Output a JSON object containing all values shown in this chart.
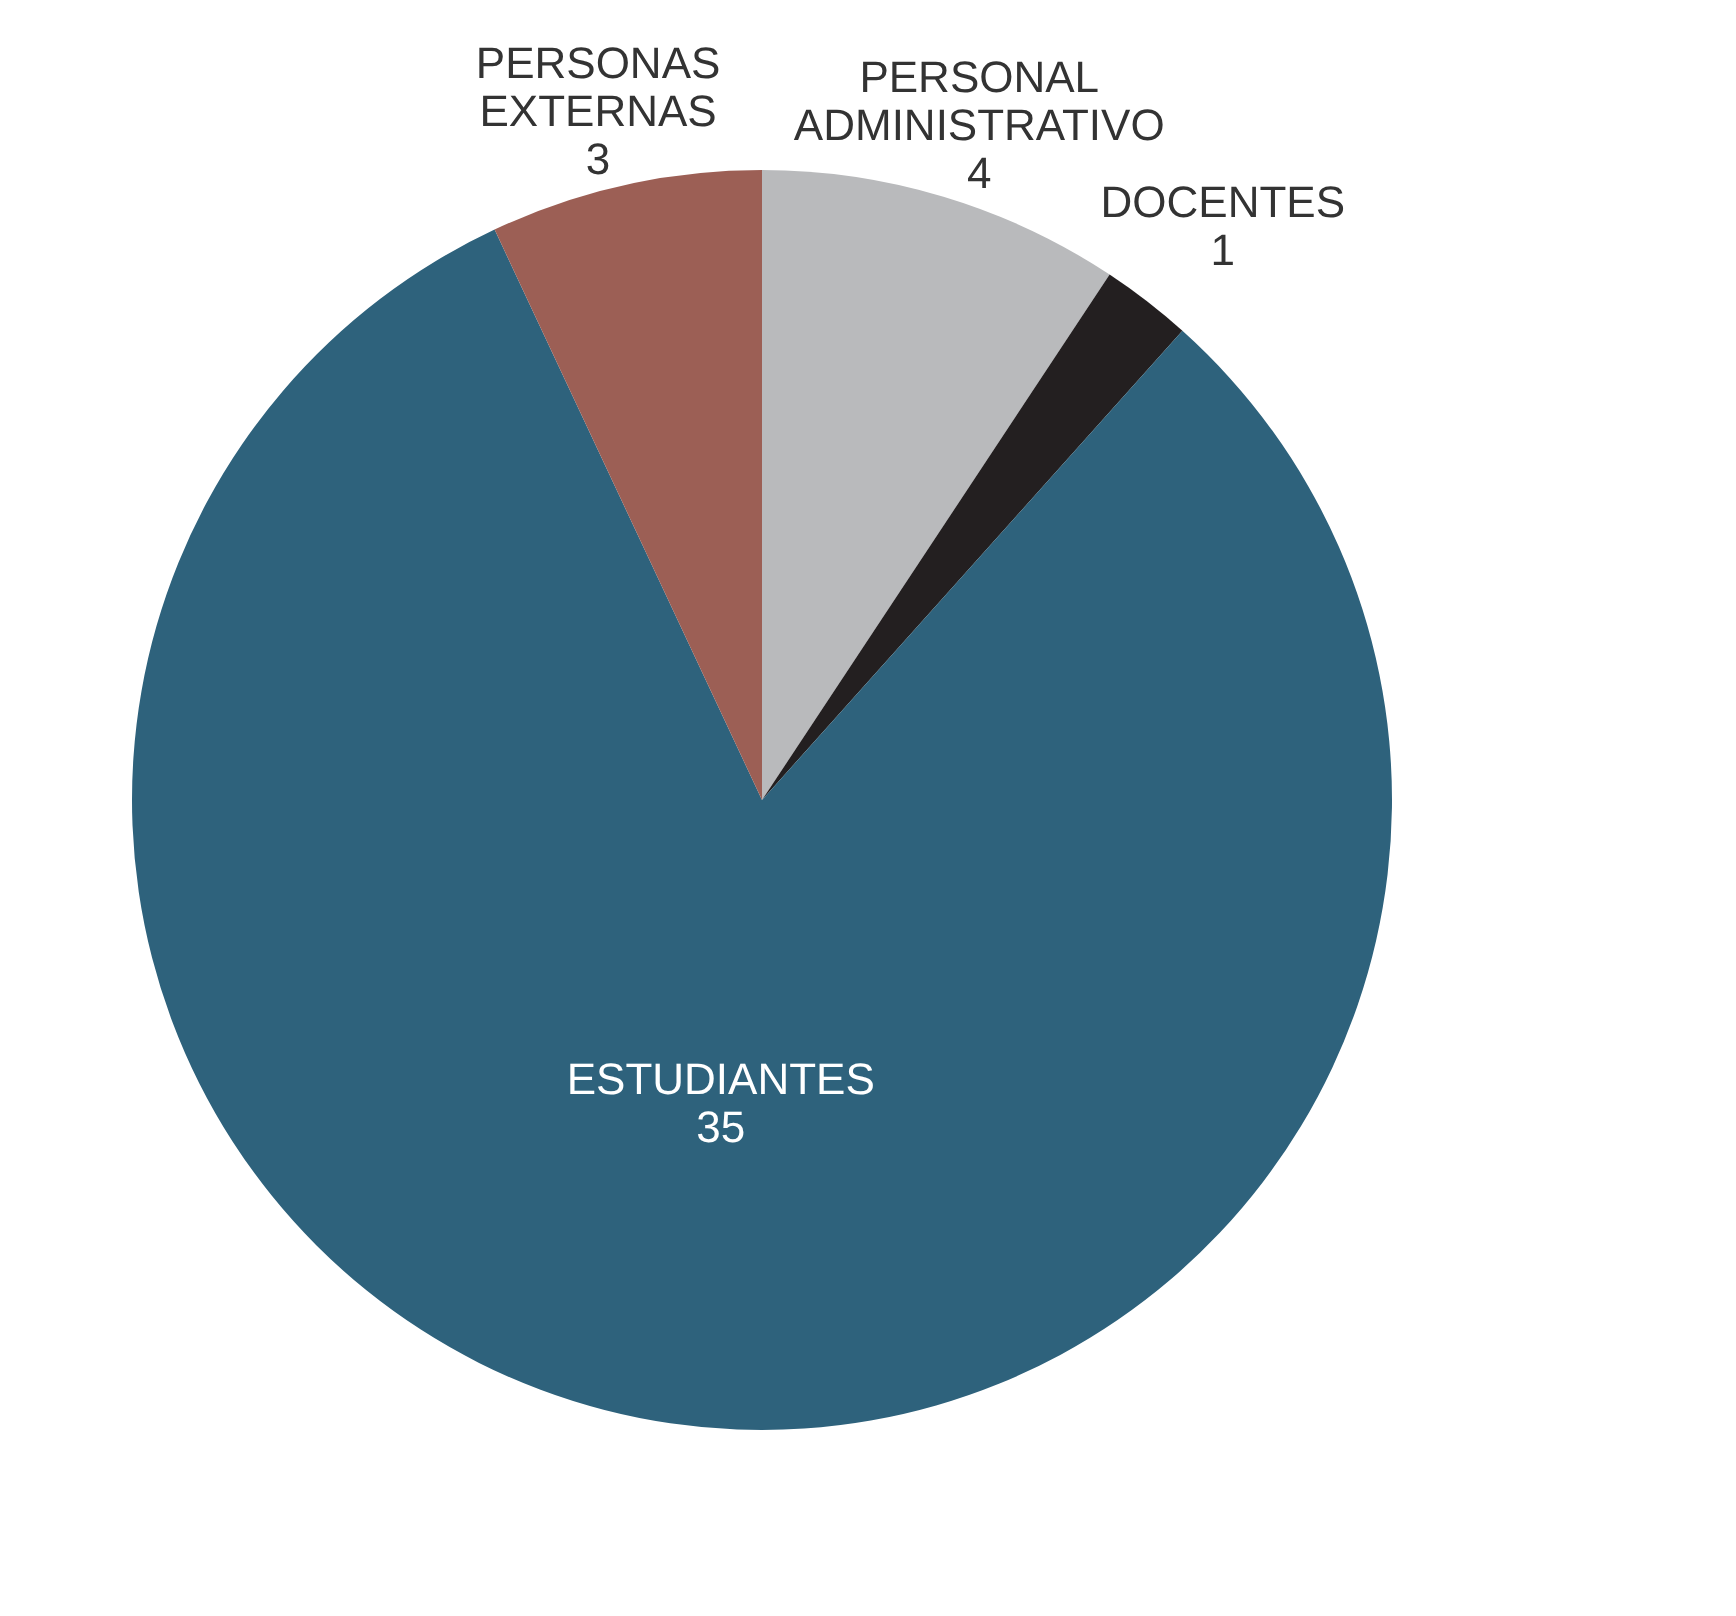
{
  "chart_data": {
    "type": "pie",
    "categories": [
      "PERSONAL ADMINISTRATIVO",
      "DOCENTES",
      "ESTUDIANTES",
      "PERSONAS EXTERNAS"
    ],
    "values": [
      4,
      1,
      35,
      3
    ],
    "colors": [
      "#b9babc",
      "#231f20",
      "#2e627c",
      "#9c5f55"
    ],
    "data_labels": true
  }
}
